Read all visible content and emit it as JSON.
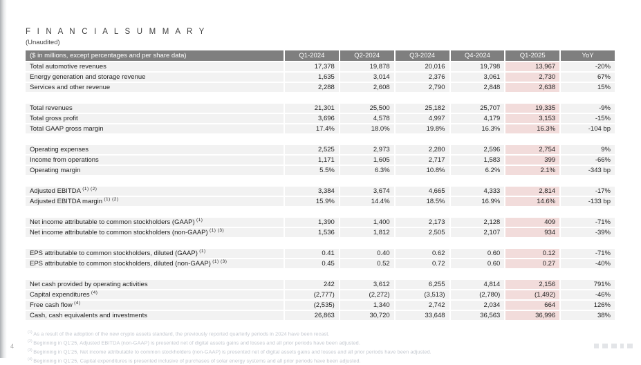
{
  "page": {
    "title": "F I N A N C I A L   S U M M A R Y",
    "subtitle": "(Unaudited)",
    "page_number": "4"
  },
  "colors": {
    "header_bg": "#7f7f7f",
    "row_bg": "#f2f2f2",
    "q1_2025_highlight_bg": "#f2dcdb",
    "header_text": "#ffffff",
    "body_text": "#1f1f1f",
    "footnote_text": "#c6cad1"
  },
  "table": {
    "header": {
      "label": "($ in millions, except percentages and per share data)",
      "columns": [
        "Q1-2024",
        "Q2-2024",
        "Q3-2024",
        "Q4-2024",
        "Q1-2025",
        "YoY"
      ],
      "highlighted_column": "Q1-2025"
    },
    "sections": [
      {
        "rows": [
          {
            "label": "Total automotive revenues",
            "sup": "",
            "values": [
              "17,378",
              "19,878",
              "20,016",
              "19,798",
              "13,967",
              "-20%"
            ]
          },
          {
            "label": "Energy generation and storage revenue",
            "sup": "",
            "values": [
              "1,635",
              "3,014",
              "2,376",
              "3,061",
              "2,730",
              "67%"
            ]
          },
          {
            "label": "Services and other revenue",
            "sup": "",
            "values": [
              "2,288",
              "2,608",
              "2,790",
              "2,848",
              "2,638",
              "15%"
            ]
          }
        ]
      },
      {
        "rows": [
          {
            "label": "Total revenues",
            "sup": "",
            "values": [
              "21,301",
              "25,500",
              "25,182",
              "25,707",
              "19,335",
              "-9%"
            ]
          },
          {
            "label": "Total gross profit",
            "sup": "",
            "values": [
              "3,696",
              "4,578",
              "4,997",
              "4,179",
              "3,153",
              "-15%"
            ]
          },
          {
            "label": "Total GAAP gross margin",
            "sup": "",
            "values": [
              "17.4%",
              "18.0%",
              "19.8%",
              "16.3%",
              "16.3%",
              "-104 bp"
            ]
          }
        ]
      },
      {
        "rows": [
          {
            "label": "Operating expenses",
            "sup": "",
            "values": [
              "2,525",
              "2,973",
              "2,280",
              "2,596",
              "2,754",
              "9%"
            ]
          },
          {
            "label": "Income from operations",
            "sup": "",
            "values": [
              "1,171",
              "1,605",
              "2,717",
              "1,583",
              "399",
              "-66%"
            ]
          },
          {
            "label": "Operating margin",
            "sup": "",
            "values": [
              "5.5%",
              "6.3%",
              "10.8%",
              "6.2%",
              "2.1%",
              "-343 bp"
            ]
          }
        ]
      },
      {
        "rows": [
          {
            "label": "Adjusted EBITDA",
            "sup": "(1) (2)",
            "values": [
              "3,384",
              "3,674",
              "4,665",
              "4,333",
              "2,814",
              "-17%"
            ]
          },
          {
            "label": "Adjusted EBITDA margin",
            "sup": "(1) (2)",
            "values": [
              "15.9%",
              "14.4%",
              "18.5%",
              "16.9%",
              "14.6%",
              "-133 bp"
            ]
          }
        ]
      },
      {
        "rows": [
          {
            "label": "Net income attributable to common stockholders (GAAP)",
            "sup": "(1)",
            "values": [
              "1,390",
              "1,400",
              "2,173",
              "2,128",
              "409",
              "-71%"
            ]
          },
          {
            "label": "Net income attributable to common stockholders (non-GAAP)",
            "sup": "(1) (3)",
            "values": [
              "1,536",
              "1,812",
              "2,505",
              "2,107",
              "934",
              "-39%"
            ]
          }
        ]
      },
      {
        "rows": [
          {
            "label": "EPS attributable to common stockholders, diluted (GAAP)",
            "sup": "(1)",
            "values": [
              "0.41",
              "0.40",
              "0.62",
              "0.60",
              "0.12",
              "-71%"
            ]
          },
          {
            "label": "EPS attributable to common stockholders, diluted (non-GAAP)",
            "sup": "(1) (3)",
            "values": [
              "0.45",
              "0.52",
              "0.72",
              "0.60",
              "0.27",
              "-40%"
            ]
          }
        ]
      },
      {
        "rows": [
          {
            "label": "Net cash provided by operating activities",
            "sup": "",
            "values": [
              "242",
              "3,612",
              "6,255",
              "4,814",
              "2,156",
              "791%"
            ]
          },
          {
            "label": "Capital expenditures",
            "sup": "(4)",
            "values": [
              "(2,777)",
              "(2,272)",
              "(3,513)",
              "(2,780)",
              "(1,492)",
              "-46%"
            ]
          },
          {
            "label": "Free cash flow",
            "sup": "(4)",
            "values": [
              "(2,535)",
              "1,340",
              "2,742",
              "2,034",
              "664",
              "126%"
            ]
          },
          {
            "label": "Cash, cash equivalents and investments",
            "sup": "",
            "values": [
              "26,863",
              "30,720",
              "33,648",
              "36,563",
              "36,996",
              "38%"
            ]
          }
        ]
      }
    ]
  },
  "footnotes": [
    {
      "sup": "(1)",
      "text": "As a result of the adoption of the new crypto assets standard, the previously reported quarterly periods in 2024 have been recast."
    },
    {
      "sup": "(2)",
      "text": "Beginning in Q1'25, Adjusted EBITDA (non-GAAP) is presented net of digital assets gains and losses and all prior periods have been adjusted."
    },
    {
      "sup": "(3)",
      "text": "Beginning in Q1'25, Net income attributable to common stockholders (non-GAAP) is presented net of digital assets gains and losses and all prior periods have been adjusted."
    },
    {
      "sup": "(4)",
      "text": "Beginning in Q1'25, Capital expenditures is presented inclusive of purchases of solar energy systems and all prior periods have been adjusted."
    }
  ]
}
